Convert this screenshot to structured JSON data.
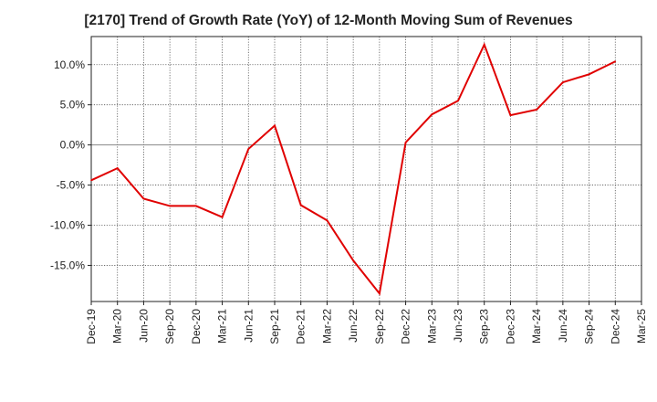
{
  "chart_data": {
    "type": "line",
    "title": "[2170]  Trend of Growth Rate (YoY) of 12-Month Moving Sum of Revenues",
    "xlabel": "",
    "ylabel": "",
    "x_ticks": [
      "Dec-19",
      "Mar-20",
      "Jun-20",
      "Sep-20",
      "Dec-20",
      "Mar-21",
      "Jun-21",
      "Sep-21",
      "Dec-21",
      "Mar-22",
      "Jun-22",
      "Sep-22",
      "Dec-22",
      "Mar-23",
      "Jun-23",
      "Sep-23",
      "Dec-23",
      "Mar-24",
      "Jun-24",
      "Sep-24",
      "Dec-24",
      "Mar-25"
    ],
    "y_ticks": [
      10.0,
      5.0,
      0.0,
      -5.0,
      -10.0,
      -15.0
    ],
    "y_tick_labels": [
      "10.0%",
      "5.0%",
      "0.0%",
      "-5.0%",
      "-10.0%",
      "-15.0%"
    ],
    "ylim": [
      -19.5,
      13.5
    ],
    "grid": true,
    "zero_line": true,
    "series": [
      {
        "color": "#e00000",
        "x": [
          "Dec-19",
          "Mar-20",
          "Jun-20",
          "Sep-20",
          "Dec-20",
          "Mar-21",
          "Jun-21",
          "Sep-21",
          "Dec-21",
          "Mar-22",
          "Jun-22",
          "Sep-22",
          "Dec-22",
          "Mar-23",
          "Jun-23",
          "Sep-23",
          "Dec-23",
          "Mar-24",
          "Jun-24",
          "Sep-24",
          "Dec-24"
        ],
        "values": [
          -4.4,
          -2.9,
          -6.7,
          -7.6,
          -7.6,
          -9.0,
          -0.5,
          2.4,
          -7.5,
          -9.4,
          -14.4,
          -18.5,
          0.3,
          3.8,
          5.5,
          12.5,
          3.7,
          4.4,
          7.8,
          8.8,
          10.4
        ]
      }
    ]
  }
}
